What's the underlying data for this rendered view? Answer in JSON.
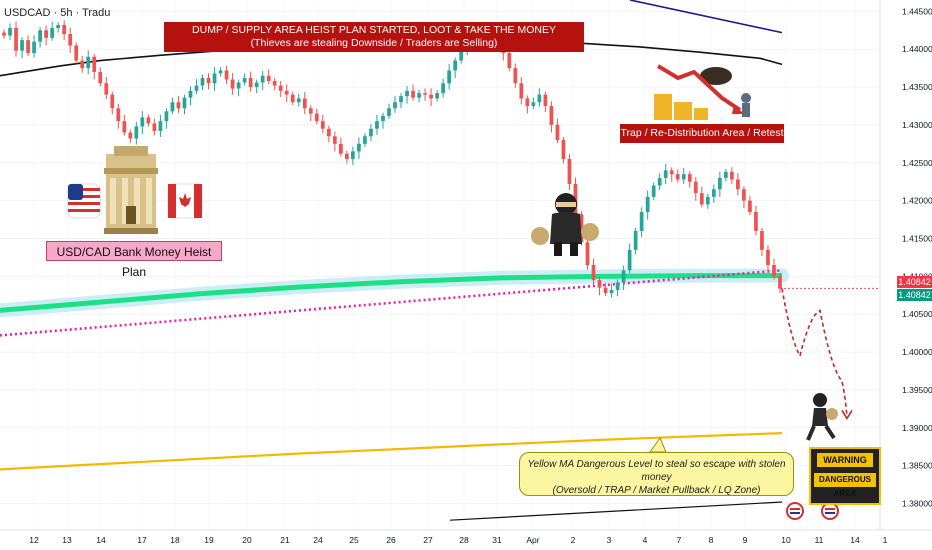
{
  "header": {
    "symbol": "USDCAD · 5h · Tradu"
  },
  "annotations": {
    "banner_line1": "DUMP / SUPPLY AREA HEIST PLAN STARTED, LOOT & TAKE THE MONEY",
    "banner_line2": "(Thieves are stealing Downside / Traders are Selling)",
    "trap_label": "Trap / Re-Distribution Area / Retest",
    "heist_label": "USD/CAD Bank Money Heist Plan",
    "yellow_line1": "Yellow MA Dangerous Level to steal so escape with stolen money",
    "yellow_line2": "(Oversold / TRAP / Market Pullback / LQ Zone)",
    "warning_top": "WARNING",
    "warning_bottom": "DANGEROUS AREA"
  },
  "price_tags": [
    {
      "value": "1.40842",
      "color": "#f23645"
    },
    {
      "value": "1.40842",
      "color": "#089981"
    }
  ],
  "colors": {
    "up": "#26a69a",
    "down": "#ef5350",
    "ma_black": "#111111",
    "ma_navy": "#1a1a8c",
    "ma_green": "#1de084",
    "ma_magenta": "#e91eb0",
    "ma_yellow": "#f5b800",
    "banner": "#b5120f",
    "projection": "#c62828"
  },
  "chart_data": {
    "type": "candlestick",
    "symbol": "USDCAD",
    "timeframe": "5h",
    "x_ticks": [
      "12",
      "13",
      "14",
      "17",
      "18",
      "19",
      "20",
      "21",
      "24",
      "25",
      "26",
      "27",
      "28",
      "31",
      "Apr",
      "2",
      "3",
      "4",
      "7",
      "8",
      "9",
      "10",
      "11",
      "14",
      "1"
    ],
    "y_ticks": [
      "1.44500",
      "1.44000",
      "1.43500",
      "1.43000",
      "1.42500",
      "1.42000",
      "1.41500",
      "1.41000",
      "1.40500",
      "1.40000",
      "1.39500",
      "1.39000",
      "1.38500",
      "1.38000"
    ],
    "ylim": [
      1.3765,
      1.4465
    ],
    "last_price": 1.40842,
    "candles_close": [
      1.4418,
      1.4428,
      1.4398,
      1.4412,
      1.4395,
      1.441,
      1.4425,
      1.4415,
      1.4428,
      1.4432,
      1.442,
      1.4405,
      1.4385,
      1.4375,
      1.439,
      1.437,
      1.4355,
      1.434,
      1.4322,
      1.4305,
      1.429,
      1.4282,
      1.4298,
      1.431,
      1.4302,
      1.4292,
      1.4305,
      1.4318,
      1.433,
      1.4322,
      1.4336,
      1.4345,
      1.4352,
      1.4362,
      1.4355,
      1.4368,
      1.4372,
      1.436,
      1.4348,
      1.4356,
      1.4362,
      1.435,
      1.4356,
      1.4365,
      1.4358,
      1.4352,
      1.4345,
      1.434,
      1.433,
      1.4335,
      1.4322,
      1.4315,
      1.4305,
      1.4295,
      1.4285,
      1.4275,
      1.4262,
      1.4255,
      1.4265,
      1.4275,
      1.4285,
      1.4295,
      1.4305,
      1.4312,
      1.4322,
      1.433,
      1.4338,
      1.4345,
      1.4336,
      1.4342,
      1.434,
      1.4335,
      1.4342,
      1.4355,
      1.4372,
      1.4385,
      1.4398,
      1.4408,
      1.4412,
      1.4418,
      1.4422,
      1.442,
      1.4412,
      1.4395,
      1.4375,
      1.4355,
      1.4335,
      1.4325,
      1.433,
      1.434,
      1.4325,
      1.43,
      1.428,
      1.4255,
      1.4222,
      1.4182,
      1.4145,
      1.4115,
      1.4095,
      1.4085,
      1.4078,
      1.4082,
      1.4092,
      1.4108,
      1.4135,
      1.416,
      1.4185,
      1.4205,
      1.422,
      1.423,
      1.424,
      1.4235,
      1.4228,
      1.4235,
      1.4225,
      1.421,
      1.4195,
      1.4205,
      1.4215,
      1.423,
      1.4238,
      1.4228,
      1.4215,
      1.42,
      1.4185,
      1.416,
      1.4135,
      1.4115,
      1.41,
      1.4084
    ],
    "series": [
      {
        "kind": "moving_average",
        "x": [
          0,
          60,
          100,
          160,
          220,
          280,
          340,
          400,
          460,
          520,
          580,
          640,
          700,
          760,
          782
        ],
        "values": [
          1.4365,
          1.4378,
          1.4385,
          1.4392,
          1.4398,
          1.4402,
          1.4405,
          1.4407,
          1.4409,
          1.441,
          1.4408,
          1.4403,
          1.4396,
          1.4388,
          1.438
        ]
      },
      {
        "kind": "moving_average",
        "x": [
          630,
          782
        ],
        "values": [
          1.4465,
          1.4422
        ]
      },
      {
        "kind": "moving_average",
        "x": [
          0,
          100,
          200,
          300,
          400,
          500,
          600,
          700,
          782
        ],
        "values": [
          1.4055,
          1.4066,
          1.4077,
          1.4086,
          1.4093,
          1.4098,
          1.41,
          1.4101,
          1.4101
        ]
      },
      {
        "kind": "moving_average",
        "x": [
          0,
          782
        ],
        "values": [
          1.4022,
          1.4108
        ]
      },
      {
        "kind": "moving_average",
        "x": [
          0,
          100,
          200,
          300,
          400,
          500,
          600,
          700,
          782
        ],
        "values": [
          1.3845,
          1.3852,
          1.3859,
          1.3866,
          1.3872,
          1.3878,
          1.3884,
          1.3889,
          1.3893
        ]
      },
      {
        "kind": "moving_average",
        "x": [
          450,
          782
        ],
        "values": [
          1.3778,
          1.3802
        ]
      }
    ],
    "projection": {
      "x": [
        782,
        800,
        820,
        840,
        847
      ],
      "values": [
        1.4084,
        1.3995,
        1.4055,
        1.3965,
        1.3915
      ]
    }
  }
}
